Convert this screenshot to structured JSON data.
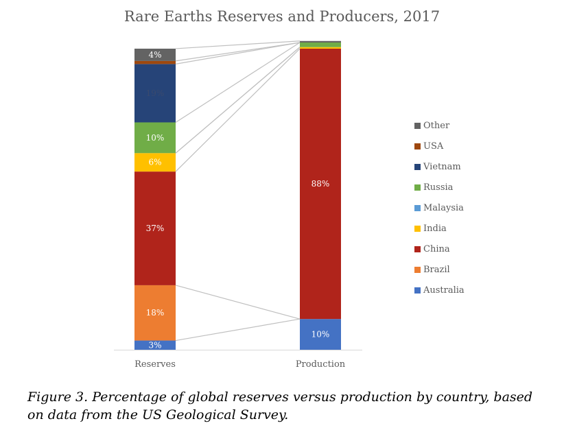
{
  "chart_data": {
    "type": "bar",
    "stacked": true,
    "title": "Rare Earths Reserves and Producers, 2017",
    "categories": [
      "Reserves",
      "Production"
    ],
    "ylim": [
      0,
      100
    ],
    "series": [
      {
        "name": "Australia",
        "color": "#4472C4",
        "values": [
          3,
          10
        ],
        "labels": [
          "3%",
          "10%"
        ]
      },
      {
        "name": "Brazil",
        "color": "#ED7D31",
        "values": [
          18,
          0
        ],
        "labels": [
          "18%",
          ""
        ]
      },
      {
        "name": "China",
        "color": "#B0241B",
        "values": [
          37,
          88
        ],
        "labels": [
          "37%",
          "88%"
        ]
      },
      {
        "name": "India",
        "color": "#FFC000",
        "values": [
          6,
          0.5
        ],
        "labels": [
          "6%",
          ""
        ]
      },
      {
        "name": "Malaysia",
        "color": "#5B9BD5",
        "values": [
          0,
          0
        ],
        "labels": [
          "",
          ""
        ]
      },
      {
        "name": "Russia",
        "color": "#70AD47",
        "values": [
          10,
          1.5
        ],
        "labels": [
          "10%",
          ""
        ]
      },
      {
        "name": "Vietnam",
        "color": "#264478",
        "values": [
          19,
          0
        ],
        "labels": [
          "19%",
          ""
        ]
      },
      {
        "name": "USA",
        "color": "#9E480E",
        "values": [
          1,
          0
        ],
        "labels": [
          "",
          ""
        ]
      },
      {
        "name": "Other",
        "color": "#636363",
        "values": [
          4,
          0.5
        ],
        "labels": [
          "4%",
          ""
        ]
      }
    ],
    "legend_position": "right"
  },
  "caption": "Figure 3. Percentage of global reserves versus production by country, based on data from the US Geological Survey."
}
